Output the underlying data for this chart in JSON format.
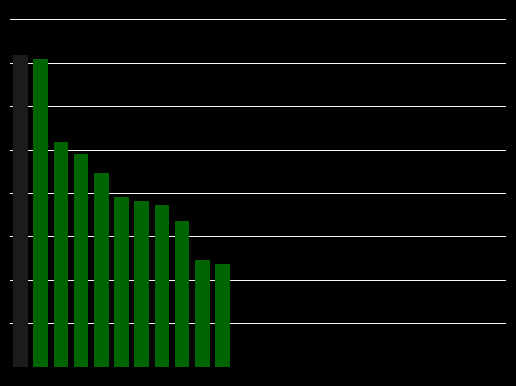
{
  "values": [
    79,
    78,
    57,
    54,
    49,
    43,
    42,
    41,
    37,
    27,
    26
  ],
  "bar_colors": [
    "#1c1c1c",
    "#006400",
    "#006400",
    "#006400",
    "#006400",
    "#006400",
    "#006400",
    "#006400",
    "#006400",
    "#006400",
    "#006400"
  ],
  "background_color": "#000000",
  "grid_color": "#ffffff",
  "ylim": [
    0,
    88
  ],
  "yticks": [
    0,
    11,
    22,
    33,
    44,
    55,
    66,
    77,
    88
  ],
  "figsize": [
    5.16,
    3.86
  ],
  "dpi": 100,
  "bar_width": 0.72,
  "xlim": [
    -0.5,
    24
  ],
  "n_xticks": 25
}
